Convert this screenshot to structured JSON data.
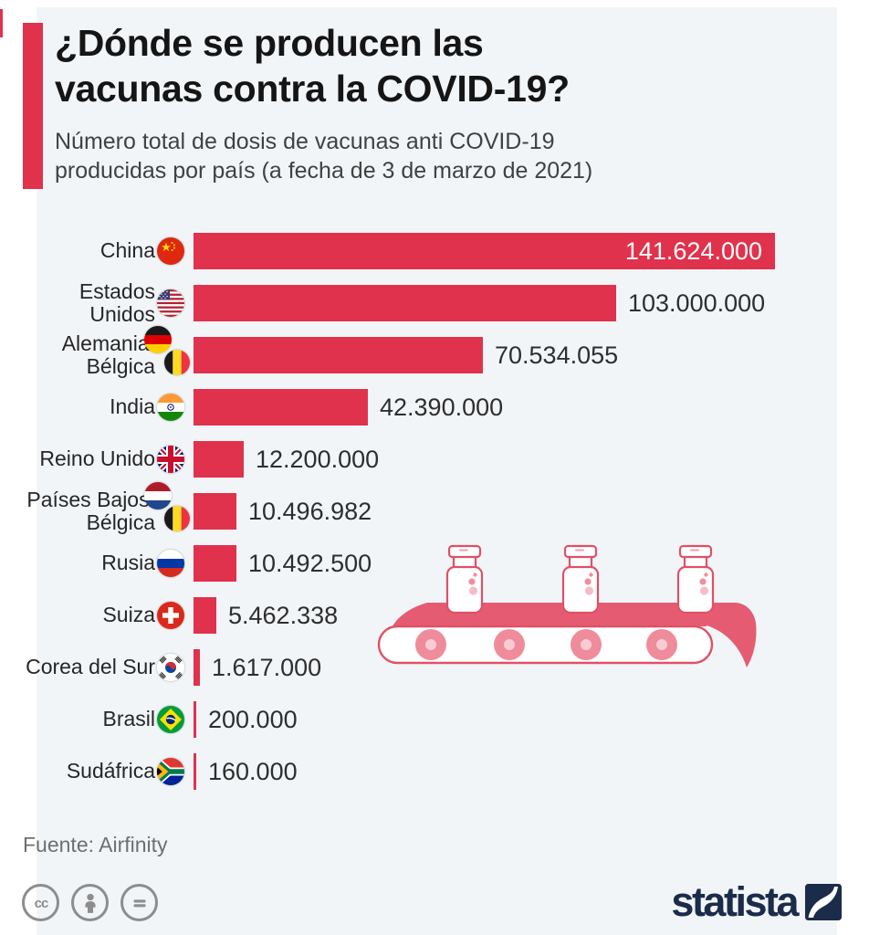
{
  "header": {
    "title_line1": "¿Dónde se producen las",
    "title_line2": "vacunas contra la COVID-19?",
    "subtitle_line1": "Número total de dosis de vacunas anti COVID-19",
    "subtitle_line2": "producidas por país (a fecha de 3 de marzo de 2021)"
  },
  "chart_data": {
    "type": "bar",
    "orientation": "horizontal",
    "title": "¿Dónde se producen las vacunas contra la COVID-19?",
    "subtitle": "Número total de dosis de vacunas anti COVID-19 producidas por país (a fecha de 3 de marzo de 2021)",
    "unit": "dosis",
    "max_value": 141624000,
    "value_labels": "outside bars except largest (inside, white)",
    "rows": [
      {
        "label": "China",
        "value": 141624000,
        "display": "141.624.000",
        "flag": "china-flag-icon"
      },
      {
        "label": "Estados Unidos",
        "value": 103000000,
        "display": "103.000.000",
        "flag": "usa-flag-icon"
      },
      {
        "label": "Alemania/ Bélgica",
        "value": 70534055,
        "display": "70.534.055",
        "flag": "germany-belgium-flag-icons"
      },
      {
        "label": "India",
        "value": 42390000,
        "display": "42.390.000",
        "flag": "india-flag-icon"
      },
      {
        "label": "Reino Unido",
        "value": 12200000,
        "display": "12.200.000",
        "flag": "uk-flag-icon"
      },
      {
        "label": "Países Bajos/ Bélgica",
        "value": 10496982,
        "display": "10.496.982",
        "flag": "netherlands-belgium-flag-icons"
      },
      {
        "label": "Rusia",
        "value": 10492500,
        "display": "10.492.500",
        "flag": "russia-flag-icon"
      },
      {
        "label": "Suiza",
        "value": 5462338,
        "display": "5.462.338",
        "flag": "switzerland-flag-icon"
      },
      {
        "label": "Corea del Sur",
        "value": 1617000,
        "display": "1.617.000",
        "flag": "south-korea-flag-icon"
      },
      {
        "label": "Brasil",
        "value": 200000,
        "display": "200.000",
        "flag": "brazil-flag-icon"
      },
      {
        "label": "Sudáfrica",
        "value": 160000,
        "display": "160.000",
        "flag": "south-africa-flag-icon"
      }
    ]
  },
  "illustration": {
    "name": "vaccine-vials-on-conveyor-belt",
    "vial_count": 3,
    "roller_count": 4
  },
  "colors": {
    "bar": "#e0324c",
    "accent": "#e0324c",
    "panel_background": "#f2f5f8",
    "belt_pink": "#e55c72",
    "outline_pink": "#e05066",
    "brand_navy": "#1b2b4a",
    "license_gray": "#8d8d8d"
  },
  "footer": {
    "source": "Fuente: Airfinity",
    "license_icons": [
      "cc-license-icon",
      "attribution-icon",
      "no-derivatives-icon"
    ],
    "brand": "statista"
  }
}
